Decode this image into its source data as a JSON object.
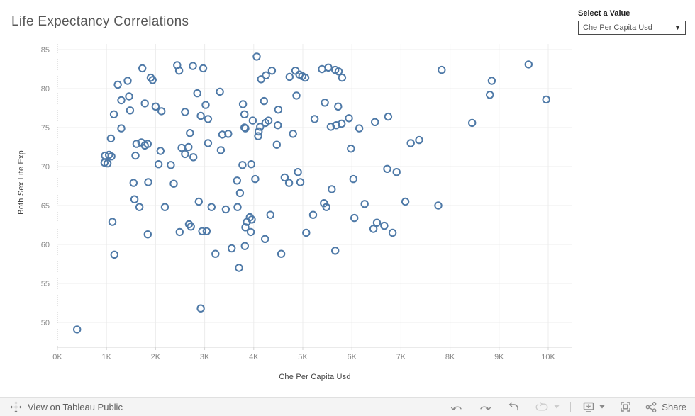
{
  "header": {
    "title": "Life Expectancy Correlations"
  },
  "parameter": {
    "label": "Select a Value",
    "value": "Che Per Capita Usd"
  },
  "chart_data": {
    "type": "scatter",
    "title": "Life Expectancy Correlations",
    "xlabel": "Che Per Capita Usd",
    "ylabel": "Both Sex Life Exp",
    "x_unit": "thousands of USD",
    "xlim": [
      0,
      10.5
    ],
    "ylim": [
      47.5,
      86.5
    ],
    "x_ticks": [
      "0K",
      "1K",
      "2K",
      "3K",
      "4K",
      "5K",
      "6K",
      "7K",
      "8K",
      "9K",
      "10K"
    ],
    "y_ticks": [
      50,
      55,
      60,
      65,
      70,
      75,
      80,
      85
    ],
    "grid": true,
    "legend": "none",
    "marker": {
      "shape": "open-circle",
      "color": "#4e79a7",
      "radius": 4.7
    },
    "style": {
      "grid": "#ececec",
      "tick": "#8a8a8a",
      "zero_line": "#c9c9c9",
      "axis_line": "#d4d4d4"
    },
    "points": [
      [
        0.4,
        49.1
      ],
      [
        0.96,
        70.5
      ],
      [
        0.97,
        71.4
      ],
      [
        1.02,
        70.4
      ],
      [
        1.05,
        71.5
      ],
      [
        1.1,
        71.3
      ],
      [
        1.09,
        73.6
      ],
      [
        1.12,
        62.9
      ],
      [
        1.15,
        76.7
      ],
      [
        1.16,
        58.7
      ],
      [
        1.23,
        80.5
      ],
      [
        1.3,
        78.5
      ],
      [
        1.3,
        74.9
      ],
      [
        1.43,
        81.0
      ],
      [
        1.46,
        79.0
      ],
      [
        1.48,
        77.2
      ],
      [
        1.55,
        67.9
      ],
      [
        1.57,
        65.8
      ],
      [
        1.59,
        71.4
      ],
      [
        1.61,
        72.9
      ],
      [
        1.67,
        64.8
      ],
      [
        1.71,
        73.1
      ],
      [
        1.73,
        82.6
      ],
      [
        1.78,
        78.1
      ],
      [
        1.78,
        72.7
      ],
      [
        1.84,
        72.9
      ],
      [
        1.84,
        61.3
      ],
      [
        1.85,
        68.0
      ],
      [
        1.9,
        81.4
      ],
      [
        1.94,
        81.1
      ],
      [
        2.0,
        77.7
      ],
      [
        2.06,
        70.3
      ],
      [
        2.1,
        72.0
      ],
      [
        2.12,
        77.1
      ],
      [
        2.19,
        64.8
      ],
      [
        2.31,
        70.2
      ],
      [
        2.37,
        67.8
      ],
      [
        2.44,
        83.0
      ],
      [
        2.48,
        82.3
      ],
      [
        2.49,
        61.6
      ],
      [
        2.53,
        72.4
      ],
      [
        2.6,
        77.0
      ],
      [
        2.6,
        71.6
      ],
      [
        2.67,
        72.5
      ],
      [
        2.68,
        62.6
      ],
      [
        2.7,
        74.3
      ],
      [
        2.72,
        62.3
      ],
      [
        2.76,
        82.9
      ],
      [
        2.77,
        71.2
      ],
      [
        2.85,
        79.4
      ],
      [
        2.88,
        65.5
      ],
      [
        2.92,
        76.5
      ],
      [
        2.92,
        51.8
      ],
      [
        2.95,
        61.7
      ],
      [
        2.97,
        82.6
      ],
      [
        3.02,
        77.9
      ],
      [
        3.04,
        61.7
      ],
      [
        3.07,
        76.1
      ],
      [
        3.07,
        73.0
      ],
      [
        3.14,
        64.8
      ],
      [
        3.22,
        58.8
      ],
      [
        3.33,
        72.1
      ],
      [
        3.31,
        79.6
      ],
      [
        3.36,
        74.1
      ],
      [
        3.43,
        64.5
      ],
      [
        3.48,
        74.2
      ],
      [
        3.55,
        59.5
      ],
      [
        3.66,
        68.2
      ],
      [
        3.67,
        64.8
      ],
      [
        3.7,
        57.0
      ],
      [
        3.72,
        66.6
      ],
      [
        3.77,
        70.2
      ],
      [
        3.78,
        78.0
      ],
      [
        3.81,
        76.7
      ],
      [
        3.81,
        75.0
      ],
      [
        3.82,
        59.8
      ],
      [
        3.83,
        74.9
      ],
      [
        3.83,
        62.2
      ],
      [
        3.86,
        62.9
      ],
      [
        3.92,
        63.5
      ],
      [
        3.94,
        61.6
      ],
      [
        3.95,
        70.3
      ],
      [
        3.96,
        63.2
      ],
      [
        3.98,
        75.9
      ],
      [
        4.03,
        68.4
      ],
      [
        4.06,
        84.1
      ],
      [
        4.09,
        73.9
      ],
      [
        4.1,
        74.5
      ],
      [
        4.13,
        75.1
      ],
      [
        4.15,
        81.2
      ],
      [
        4.21,
        78.4
      ],
      [
        4.23,
        60.7
      ],
      [
        4.24,
        75.6
      ],
      [
        4.25,
        81.7
      ],
      [
        4.3,
        75.9
      ],
      [
        4.34,
        63.8
      ],
      [
        4.37,
        82.3
      ],
      [
        4.47,
        72.8
      ],
      [
        4.49,
        75.3
      ],
      [
        4.5,
        77.3
      ],
      [
        4.56,
        58.8
      ],
      [
        4.63,
        68.6
      ],
      [
        4.72,
        67.9
      ],
      [
        4.73,
        81.5
      ],
      [
        4.8,
        74.2
      ],
      [
        4.85,
        82.3
      ],
      [
        4.87,
        79.1
      ],
      [
        4.9,
        69.3
      ],
      [
        4.93,
        81.8
      ],
      [
        4.95,
        68.0
      ],
      [
        4.99,
        81.6
      ],
      [
        5.05,
        81.4
      ],
      [
        5.07,
        61.5
      ],
      [
        5.21,
        63.8
      ],
      [
        5.24,
        76.1
      ],
      [
        5.39,
        82.5
      ],
      [
        5.43,
        65.3
      ],
      [
        5.45,
        78.2
      ],
      [
        5.48,
        64.8
      ],
      [
        5.52,
        82.7
      ],
      [
        5.57,
        75.1
      ],
      [
        5.59,
        67.1
      ],
      [
        5.66,
        82.4
      ],
      [
        5.66,
        59.2
      ],
      [
        5.68,
        75.3
      ],
      [
        5.72,
        77.7
      ],
      [
        5.73,
        82.2
      ],
      [
        5.79,
        75.5
      ],
      [
        5.8,
        81.4
      ],
      [
        5.94,
        76.2
      ],
      [
        5.98,
        72.3
      ],
      [
        6.03,
        68.4
      ],
      [
        6.05,
        63.4
      ],
      [
        6.15,
        74.9
      ],
      [
        6.26,
        65.2
      ],
      [
        6.44,
        62.0
      ],
      [
        6.47,
        75.7
      ],
      [
        6.51,
        62.8
      ],
      [
        6.66,
        62.4
      ],
      [
        6.72,
        69.7
      ],
      [
        6.74,
        76.4
      ],
      [
        6.83,
        61.5
      ],
      [
        6.91,
        69.3
      ],
      [
        7.09,
        65.5
      ],
      [
        7.2,
        73.0
      ],
      [
        7.37,
        73.4
      ],
      [
        7.76,
        65.0
      ],
      [
        7.83,
        82.4
      ],
      [
        8.45,
        75.6
      ],
      [
        8.81,
        79.2
      ],
      [
        8.85,
        81.0
      ],
      [
        9.6,
        83.1
      ],
      [
        9.96,
        78.6
      ]
    ]
  },
  "footer": {
    "view_on_text": "View on Tableau Public",
    "share_label": "Share",
    "icons": [
      "tableau-logo",
      "undo",
      "redo",
      "replay",
      "auto-update",
      "caret-down",
      "download",
      "caret-down",
      "fullscreen",
      "share"
    ]
  },
  "colors": {
    "accent": "#4e79a7",
    "title_text": "#575757",
    "footer_bg": "#f4f4f4"
  }
}
